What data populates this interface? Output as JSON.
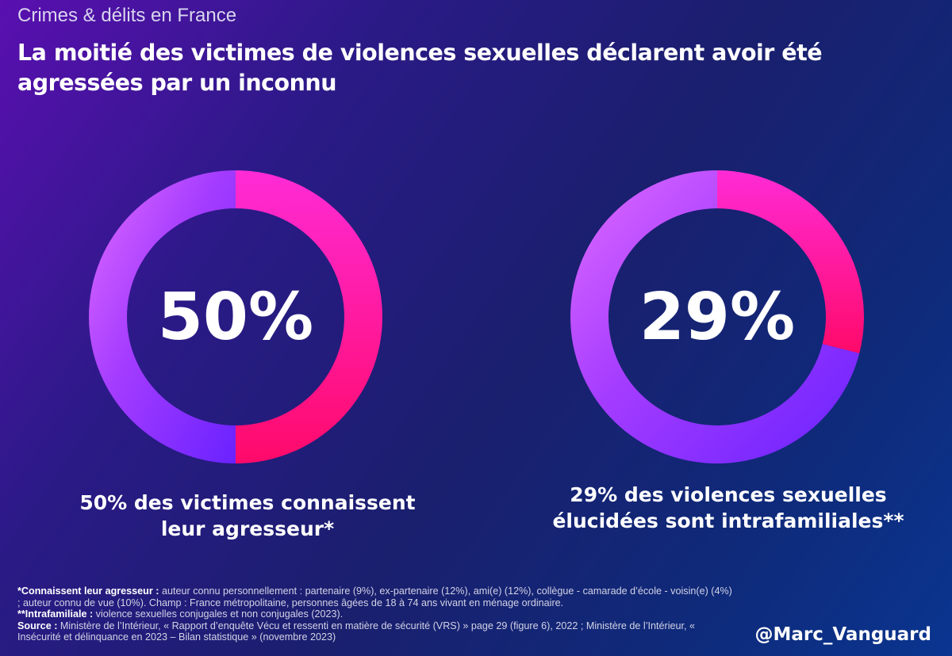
{
  "header": {
    "kicker": "Crimes & délits en France",
    "title": "La moitié des victimes de violences sexuelles déclarent avoir été agressées par un inconnu"
  },
  "chart_data": [
    {
      "type": "pie",
      "values": [
        50,
        50
      ],
      "highlight_value": 50,
      "center_label": "50%",
      "caption": "50% des victimes connaissent leur agresseur*",
      "colors": {
        "highlight": "#ff0a78",
        "rest": "#9b2cff"
      }
    },
    {
      "type": "pie",
      "values": [
        29,
        71
      ],
      "highlight_value": 29,
      "center_label": "29%",
      "caption": "29% des violences sexuelles élucidées sont intrafamiliales**",
      "colors": {
        "highlight": "#ff0a78",
        "rest": "#9b2cff"
      }
    }
  ],
  "footnotes": {
    "note1_label": "*Connaissent leur agresseur :",
    "note1_text": " auteur connu personnellement : partenaire (9%), ex-partenaire (12%), ami(e) (12%), collègue - camarade d’école - voisin(e) (4%) ; auteur connu de vue (10%). Champ : France métropolitaine, personnes âgées de 18 à 74 ans vivant en ménage ordinaire.",
    "note2_label": "**Intrafamiliale :",
    "note2_text": " violence sexuelles conjugales et non conjugales (2023).",
    "source_label": "Source :",
    "source_text": " Ministère de l’Intérieur, « Rapport d’enquête Vécu et ressenti en matière de sécurité (VRS) » page 29 (figure 6), 2022 ; Ministère de l’Intérieur, « Insécurité et délinquance en 2023 – Bilan statistique » (novembre 2023)"
  },
  "branding": {
    "handle": "@Marc_Vanguard"
  }
}
